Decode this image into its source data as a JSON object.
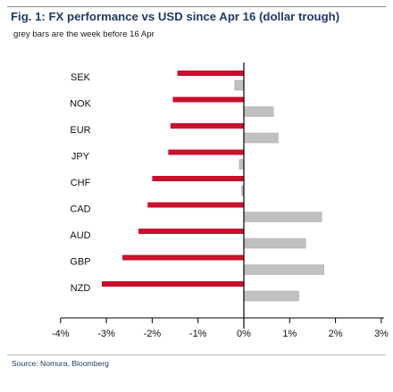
{
  "title": "Fig. 1: FX performance vs USD since Apr 16 (dollar trough)",
  "subtitle": "grey bars are the week before 16 Apr",
  "source": "Source: Nomura, Bloomberg",
  "colors": {
    "primary_bar": "#c8102e",
    "grey_bar": "#c0c0c0",
    "title": "#1f3a66"
  },
  "chart_data": {
    "type": "bar",
    "orientation": "horizontal",
    "categories": [
      "SEK",
      "NOK",
      "EUR",
      "JPY",
      "CHF",
      "CAD",
      "AUD",
      "GBP",
      "NZD"
    ],
    "category_labels": [
      "SEK",
      "NOK",
      "EUR",
      "JPY",
      "CHF",
      "CAD",
      "AUD",
      "GBP",
      "NZD"
    ],
    "series": [
      {
        "values": [
          -1.45,
          -1.55,
          -1.6,
          -1.65,
          -2.0,
          -2.1,
          -2.3,
          -2.65,
          -3.1
        ],
        "color": "#c8102e"
      },
      {
        "values": [
          -0.2,
          0.65,
          0.75,
          -0.1,
          -0.05,
          1.7,
          1.35,
          1.75,
          1.2
        ],
        "color": "#c0c0c0"
      }
    ],
    "x_ticks": [
      -4,
      -3,
      -2,
      -1,
      0,
      1,
      2,
      3
    ],
    "x_tick_labels": [
      "-4%",
      "-3%",
      "-2%",
      "-1%",
      "0%",
      "1%",
      "2%",
      "3%"
    ],
    "xlim": [
      -4,
      3
    ]
  }
}
